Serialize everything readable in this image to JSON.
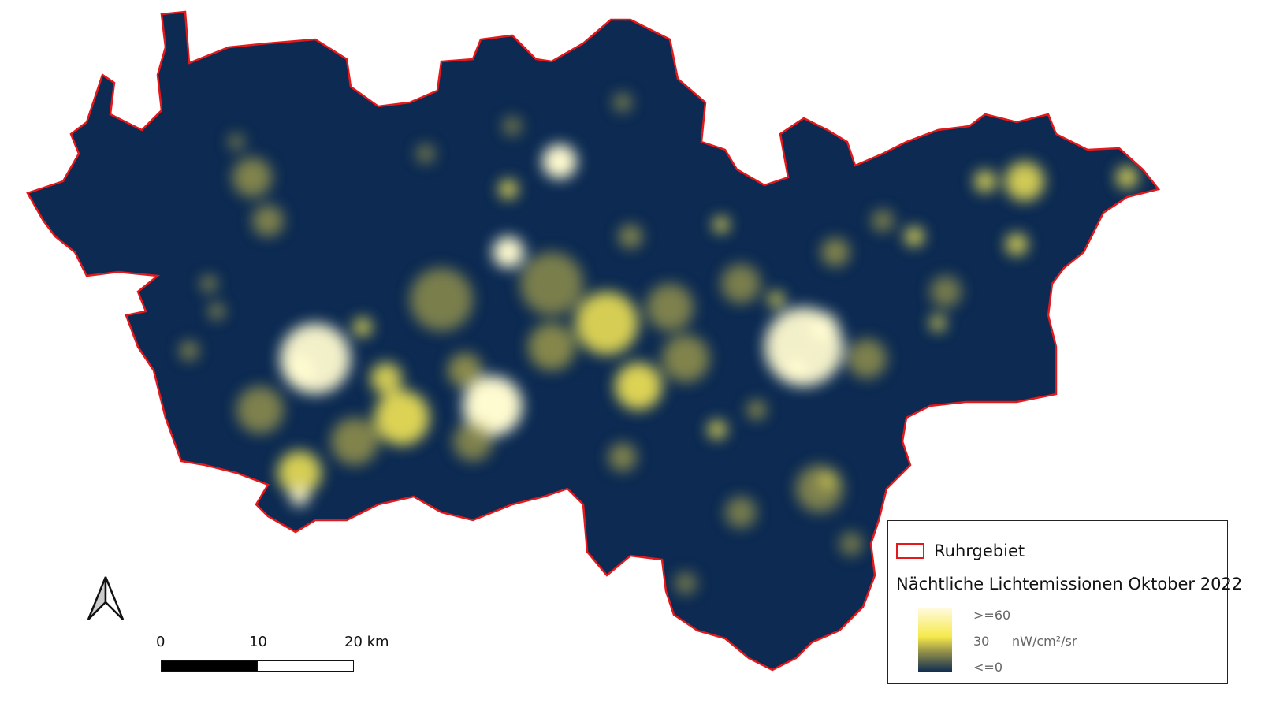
{
  "map": {
    "region_name": "Ruhrgebiet",
    "colors": {
      "boundary": "#e3191c",
      "background_low": "#0c2a52",
      "mid": "#f6e94a",
      "high": "#fffbe0"
    }
  },
  "legend": {
    "boundary_label": "Ruhrgebiet",
    "raster_title": "Nächtliche Lichtemissionen Oktober 2022",
    "ramp_max": ">=60",
    "ramp_mid": "30",
    "ramp_min": "<=0",
    "unit": "nW/cm²/sr"
  },
  "scale_bar": {
    "labels": [
      "0",
      "10",
      "20 km"
    ]
  },
  "north_arrow": {
    "icon": "north-arrow-icon"
  }
}
